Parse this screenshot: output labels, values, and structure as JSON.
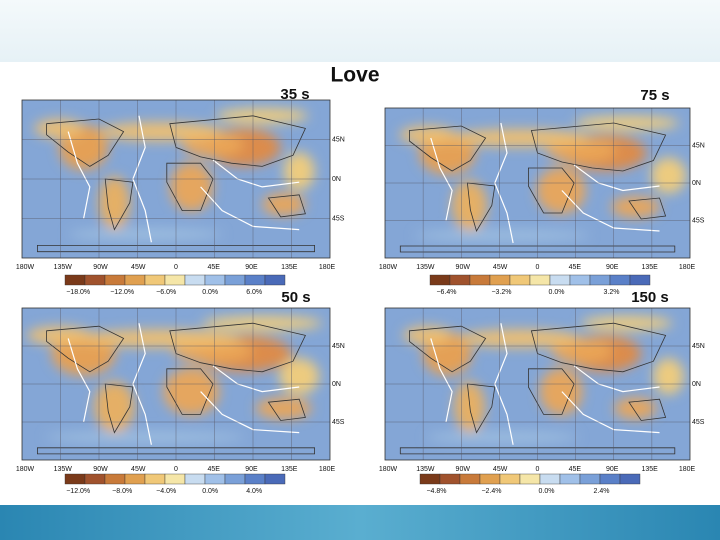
{
  "title": "Love",
  "lon_labels": [
    "180W",
    "135W",
    "90W",
    "45W",
    "0",
    "45E",
    "90E",
    "135E",
    "180E"
  ],
  "lat_labels": [
    "45N",
    "0N",
    "45S"
  ],
  "panels": [
    {
      "period": "35 s",
      "colorbar_ticks": [
        "−18.0%",
        "−12.0%",
        "−6.0%",
        "0.0%",
        "6.0%"
      ]
    },
    {
      "period": "75 s",
      "colorbar_ticks": [
        "−6.4%",
        "−3.2%",
        "0.0%",
        "3.2%"
      ]
    },
    {
      "period": "50 s",
      "colorbar_ticks": [
        "−12.0%",
        "−8.0%",
        "−4.0%",
        "0.0%",
        "4.0%"
      ]
    },
    {
      "period": "150 s",
      "colorbar_ticks": [
        "−4.8%",
        "−2.4%",
        "0.0%",
        "2.4%"
      ]
    }
  ]
}
